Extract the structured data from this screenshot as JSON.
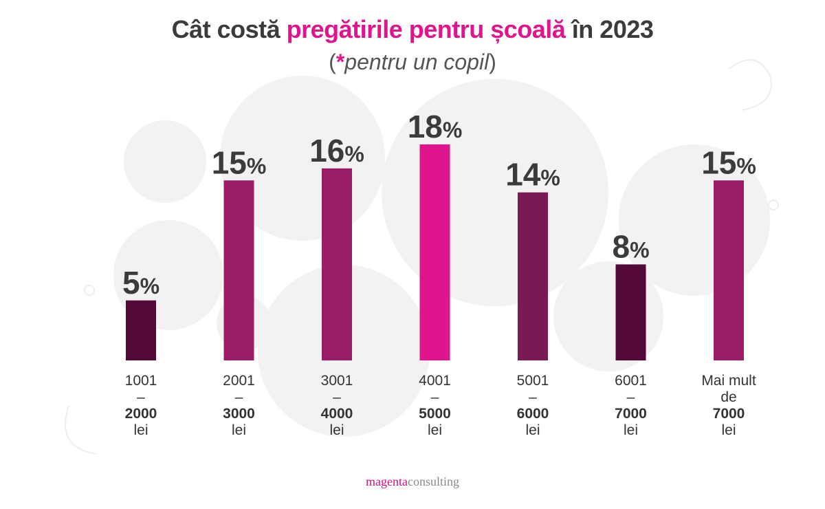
{
  "header": {
    "title_prefix": "Cât costă ",
    "title_highlight": "pregătirile pentru școală",
    "title_suffix": " în 2023",
    "subtitle_open": "(",
    "subtitle_star": "*",
    "subtitle_text": "pentru un copil",
    "subtitle_close": ")"
  },
  "colors": {
    "highlight": "#e0148c",
    "text_dark": "#3b3b3b"
  },
  "chart_data": {
    "type": "bar",
    "title": "Cât costă pregătirile pentru școală în 2023",
    "subtitle": "(*pentru un copil)",
    "ylim": [
      0,
      20
    ],
    "grid": false,
    "legend": "none",
    "categories": [
      [
        "1001",
        "–",
        "2000",
        "lei"
      ],
      [
        "2001",
        "–",
        "3000",
        "lei"
      ],
      [
        "3001",
        "–",
        "4000",
        "lei"
      ],
      [
        "4001",
        "–",
        "5000",
        "lei"
      ],
      [
        "5001",
        "–",
        "6000",
        "lei"
      ],
      [
        "6001",
        "–",
        "7000",
        "lei"
      ],
      [
        "Mai mult",
        "de",
        "7000",
        "lei"
      ]
    ],
    "values": [
      5,
      15,
      16,
      18,
      14,
      8,
      15
    ],
    "value_labels": [
      "5",
      "15",
      "16",
      "18",
      "14",
      "8",
      "15"
    ],
    "unit": "%",
    "bar_colors": [
      "#540a38",
      "#9a1d67",
      "#9a1d67",
      "#e0148c",
      "#7a1a55",
      "#540a38",
      "#9a1d67"
    ]
  },
  "footer": {
    "brand_part1": "magenta",
    "brand_part2": "consulting"
  }
}
